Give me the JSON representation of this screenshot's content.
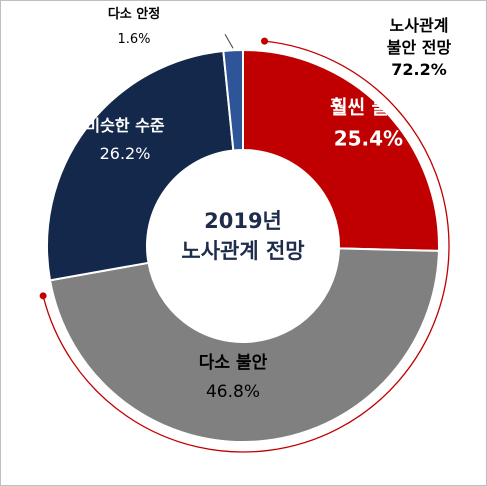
{
  "chart_data": {
    "type": "pie",
    "donut": true,
    "title": "2019년\n노사관계 전망",
    "categories": [
      "훨씬 불안",
      "다소 불안",
      "비슷한 수준",
      "다소 안정"
    ],
    "values": [
      25.4,
      46.8,
      26.2,
      1.6
    ],
    "value_labels": [
      "25.4%",
      "46.8%",
      "26.2%",
      "1.6%"
    ],
    "colors": [
      "#c00000",
      "#808080",
      "#14284b",
      "#2e5597"
    ],
    "annotation": "노사관계\n불안 전망\n72.2%",
    "annotation_color": "#c00000",
    "legend": "none"
  }
}
